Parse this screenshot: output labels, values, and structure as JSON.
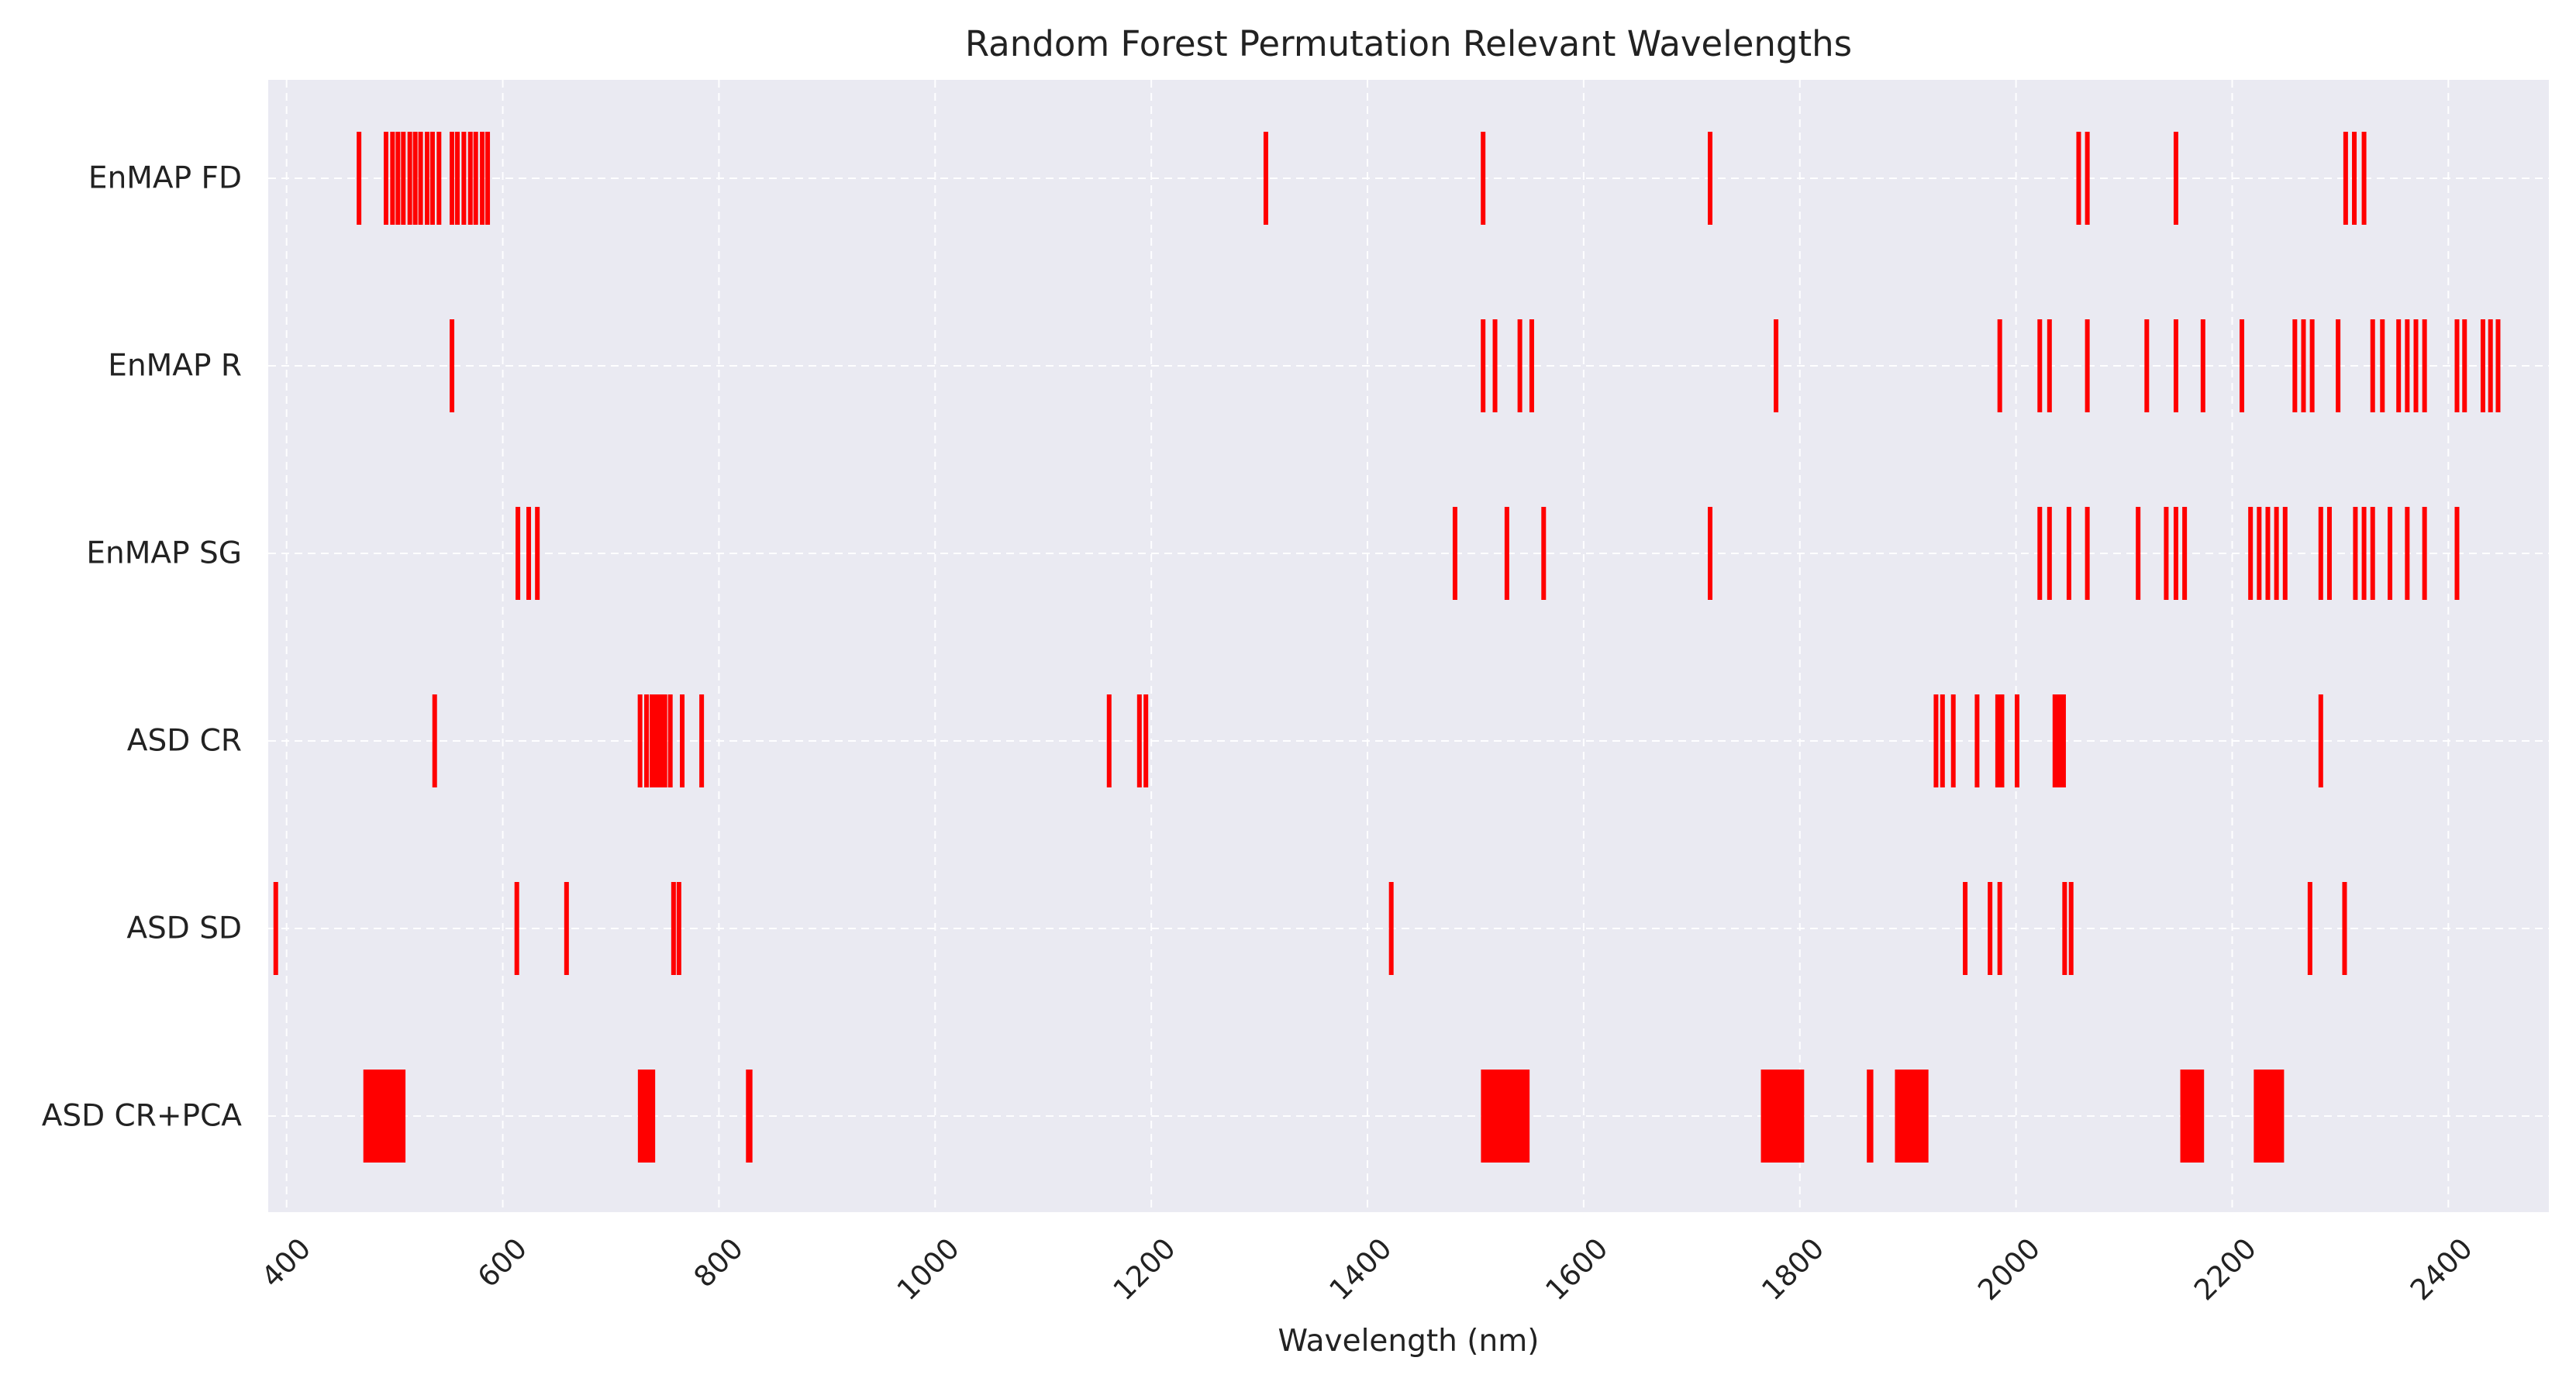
{
  "chart_data": {
    "type": "event-strip",
    "title": "Random Forest Permutation Relevant Wavelengths",
    "xlabel": "Wavelength (nm)",
    "ylabel": "",
    "xlim": [
      383,
      2493
    ],
    "xticks": [
      400,
      600,
      800,
      1000,
      1200,
      1400,
      1600,
      1800,
      2000,
      2200,
      2400
    ],
    "grid": true,
    "legend": "none",
    "colors": {
      "bar": "#ff0000",
      "plot_bg": "#eaeaf2",
      "grid": "#ffffff"
    },
    "rows": [
      {
        "label": "EnMAP FD",
        "wavelengths": [
          467,
          492,
          498,
          503,
          508,
          514,
          519,
          524,
          530,
          535,
          541,
          553,
          558,
          564,
          570,
          575,
          581,
          586,
          1306,
          1507,
          1717,
          2058,
          2066,
          2148,
          2305,
          2313,
          2322
        ]
      },
      {
        "label": "EnMAP R",
        "wavelengths": [
          553,
          1507,
          1518,
          1541,
          1552,
          1778,
          1985,
          2022,
          2031,
          2066,
          2121,
          2148,
          2173,
          2209,
          2258,
          2266,
          2274,
          2298,
          2330,
          2339,
          2354,
          2362,
          2370,
          2378,
          2408,
          2415,
          2432,
          2439,
          2446
        ]
      },
      {
        "label": "EnMAP SG",
        "wavelengths": [
          614,
          624,
          632,
          1481,
          1529,
          1563,
          1717,
          2022,
          2031,
          2049,
          2066,
          2113,
          2139,
          2148,
          2156,
          2217,
          2225,
          2233,
          2241,
          2249,
          2282,
          2290,
          2314,
          2322,
          2330,
          2346,
          2362,
          2378,
          2408
        ]
      },
      {
        "label": "ASD CR",
        "wavelengths": [
          537,
          727,
          733,
          738,
          742,
          746,
          750,
          755,
          766,
          784,
          1161,
          1189,
          1195,
          1926,
          1932,
          1942,
          1964,
          1983,
          1987,
          2001,
          2036,
          2040,
          2044,
          2282
        ]
      },
      {
        "label": "ASD SD",
        "wavelengths": [
          390,
          613,
          659,
          758,
          763,
          1422,
          1953,
          1976,
          1985,
          2045,
          2051,
          2272,
          2304
        ]
      },
      {
        "label": "ASD CR+PCA",
        "intervals": [
          [
            471,
            510
          ],
          [
            725,
            741
          ],
          [
            825,
            831
          ],
          [
            1505,
            1550
          ],
          [
            1764,
            1804
          ],
          [
            1862,
            1868
          ],
          [
            1888,
            1919
          ],
          [
            2152,
            2174
          ],
          [
            2220,
            2248
          ]
        ]
      }
    ]
  }
}
